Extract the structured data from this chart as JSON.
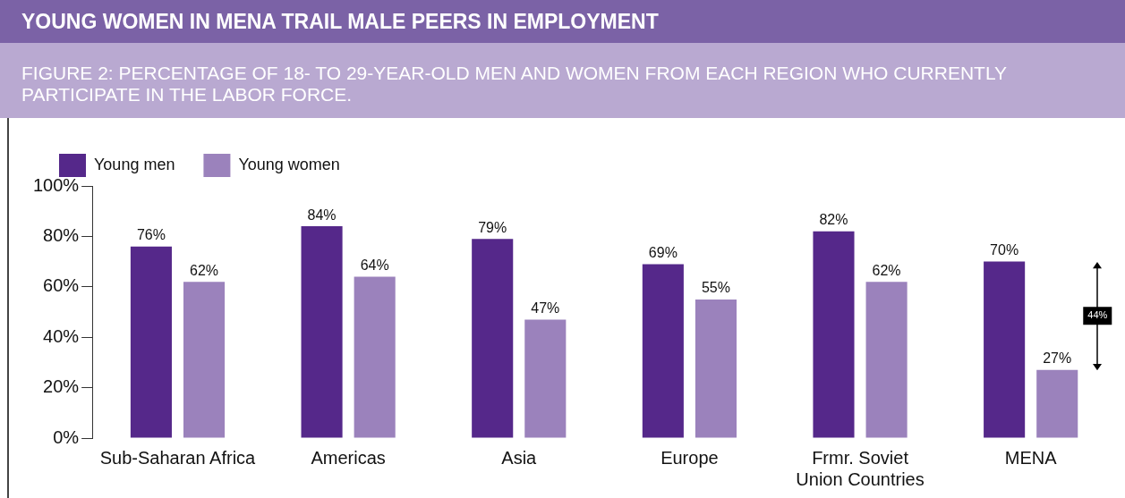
{
  "chart_data": {
    "type": "bar",
    "title": "YOUNG WOMEN IN MENA TRAIL MALE PEERS IN EMPLOYMENT",
    "subtitle": "FIGURE 2: PERCENTAGE OF 18- TO 29-YEAR-OLD MEN AND WOMEN FROM EACH REGION WHO CURRENTLY PARTICIPATE IN THE LABOR FORCE.",
    "categories": [
      "Sub-Saharan Africa",
      "Americas",
      "Asia",
      "Europe",
      "Frmr. Soviet Union Countries",
      "MENA"
    ],
    "series": [
      {
        "name": "Young men",
        "color": "#55288a",
        "values": [
          76,
          84,
          79,
          69,
          82,
          70
        ],
        "value_labels": [
          "76%",
          "84%",
          "79%",
          "69%",
          "82%",
          "70%"
        ]
      },
      {
        "name": "Young women",
        "color": "#9b82bc",
        "values": [
          62,
          64,
          47,
          55,
          62,
          27
        ],
        "value_labels": [
          "62%",
          "64%",
          "47%",
          "55%",
          "62%",
          "27%"
        ]
      }
    ],
    "ylim": [
      0,
      100
    ],
    "yticks": [
      {
        "value": 0,
        "label": "0%"
      },
      {
        "value": 20,
        "label": "20%"
      },
      {
        "value": 40,
        "label": "40%"
      },
      {
        "value": 60,
        "label": "60%"
      },
      {
        "value": 80,
        "label": "80%"
      },
      {
        "value": 100,
        "label": "100%"
      }
    ],
    "legend": "top left",
    "annotations": [
      "44%"
    ]
  }
}
